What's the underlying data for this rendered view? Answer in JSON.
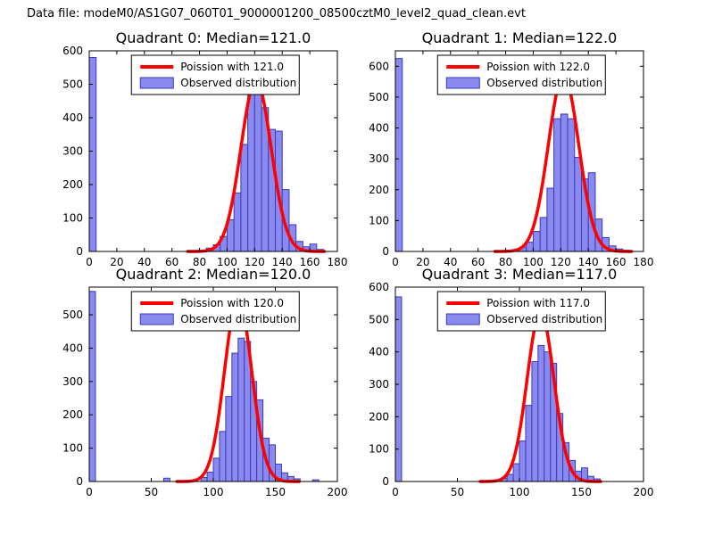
{
  "figure_title": "Data file: modeM0/AS1G07_060T01_9000001200_08500cztM0_level2_quad_clean.evt",
  "colors": {
    "background": "#ffffff",
    "axis": "#000000",
    "bar_fill": "#8a8aee",
    "bar_edge": "#3a3ac0",
    "curve": "#ff0000",
    "legend_border": "#000000",
    "legend_fill": "#ffffff"
  },
  "chart_data": [
    {
      "type": "bar",
      "subtype": "histogram-with-fit",
      "title": "Quadrant 0: Median=121.0",
      "legend": [
        {
          "label": "Poission with 121.0",
          "handle": "line"
        },
        {
          "label": "Observed distribution",
          "handle": "patch"
        }
      ],
      "xlim": [
        0,
        180
      ],
      "ylim": [
        0,
        600
      ],
      "xticks": [
        0,
        20,
        40,
        60,
        80,
        100,
        120,
        140,
        160,
        180
      ],
      "yticks": [
        0,
        100,
        200,
        300,
        400,
        500,
        600
      ],
      "bin_width": 5,
      "bars": [
        [
          0,
          580
        ],
        [
          80,
          4
        ],
        [
          85,
          10
        ],
        [
          90,
          20
        ],
        [
          95,
          45
        ],
        [
          100,
          95
        ],
        [
          105,
          175
        ],
        [
          110,
          320
        ],
        [
          115,
          480
        ],
        [
          120,
          490
        ],
        [
          125,
          430
        ],
        [
          130,
          365
        ],
        [
          135,
          360
        ],
        [
          140,
          185
        ],
        [
          145,
          80
        ],
        [
          150,
          30
        ],
        [
          155,
          14
        ],
        [
          160,
          22
        ],
        [
          165,
          6
        ]
      ],
      "curve": {
        "mu": 121,
        "sigma": 11.0,
        "peak": 510
      }
    },
    {
      "type": "bar",
      "subtype": "histogram-with-fit",
      "title": "Quadrant 1: Median=122.0",
      "legend": [
        {
          "label": "Poission with 122.0",
          "handle": "line"
        },
        {
          "label": "Observed distribution",
          "handle": "patch"
        }
      ],
      "xlim": [
        0,
        180
      ],
      "ylim": [
        0,
        650
      ],
      "xticks": [
        0,
        20,
        40,
        60,
        80,
        100,
        120,
        140,
        160,
        180
      ],
      "yticks": [
        0,
        100,
        200,
        300,
        400,
        500,
        600
      ],
      "bin_width": 5,
      "bars": [
        [
          0,
          625
        ],
        [
          85,
          6
        ],
        [
          90,
          14
        ],
        [
          95,
          30
        ],
        [
          100,
          65
        ],
        [
          105,
          110
        ],
        [
          110,
          205
        ],
        [
          115,
          430
        ],
        [
          120,
          445
        ],
        [
          125,
          430
        ],
        [
          130,
          305
        ],
        [
          135,
          235
        ],
        [
          140,
          255
        ],
        [
          145,
          105
        ],
        [
          150,
          45
        ],
        [
          155,
          18
        ],
        [
          160,
          8
        ],
        [
          165,
          4
        ]
      ],
      "curve": {
        "mu": 122,
        "sigma": 11.05,
        "peak": 570
      }
    },
    {
      "type": "bar",
      "subtype": "histogram-with-fit",
      "title": "Quadrant 2: Median=120.0",
      "legend": [
        {
          "label": "Poission with 120.0",
          "handle": "line"
        },
        {
          "label": "Observed distribution",
          "handle": "patch"
        }
      ],
      "xlim": [
        0,
        200
      ],
      "ylim": [
        0,
        583
      ],
      "xticks": [
        0,
        50,
        100,
        150,
        200
      ],
      "yticks": [
        0,
        100,
        200,
        300,
        400,
        500
      ],
      "bin_width": 5,
      "bars": [
        [
          0,
          570
        ],
        [
          60,
          10
        ],
        [
          90,
          12
        ],
        [
          95,
          28
        ],
        [
          100,
          70
        ],
        [
          105,
          150
        ],
        [
          110,
          255
        ],
        [
          115,
          385
        ],
        [
          120,
          430
        ],
        [
          125,
          420
        ],
        [
          130,
          300
        ],
        [
          135,
          245
        ],
        [
          140,
          130
        ],
        [
          145,
          110
        ],
        [
          150,
          52
        ],
        [
          155,
          26
        ],
        [
          160,
          15
        ],
        [
          165,
          8
        ],
        [
          180,
          5
        ]
      ],
      "curve": {
        "mu": 120,
        "sigma": 10.95,
        "peak": 548
      }
    },
    {
      "type": "bar",
      "subtype": "histogram-with-fit",
      "title": "Quadrant 3: Median=117.0",
      "legend": [
        {
          "label": "Poission with 117.0",
          "handle": "line"
        },
        {
          "label": "Observed distribution",
          "handle": "patch"
        }
      ],
      "xlim": [
        0,
        200
      ],
      "ylim": [
        0,
        600
      ],
      "xticks": [
        0,
        50,
        100,
        150,
        200
      ],
      "yticks": [
        0,
        100,
        200,
        300,
        400,
        500,
        600
      ],
      "bin_width": 5,
      "bars": [
        [
          0,
          570
        ],
        [
          80,
          5
        ],
        [
          85,
          10
        ],
        [
          90,
          22
        ],
        [
          95,
          55
        ],
        [
          100,
          125
        ],
        [
          105,
          235
        ],
        [
          110,
          370
        ],
        [
          115,
          420
        ],
        [
          120,
          400
        ],
        [
          125,
          365
        ],
        [
          130,
          210
        ],
        [
          135,
          120
        ],
        [
          140,
          65
        ],
        [
          145,
          32
        ],
        [
          150,
          42
        ],
        [
          155,
          16
        ],
        [
          160,
          8
        ]
      ],
      "curve": {
        "mu": 117,
        "sigma": 10.8,
        "peak": 522
      }
    }
  ]
}
